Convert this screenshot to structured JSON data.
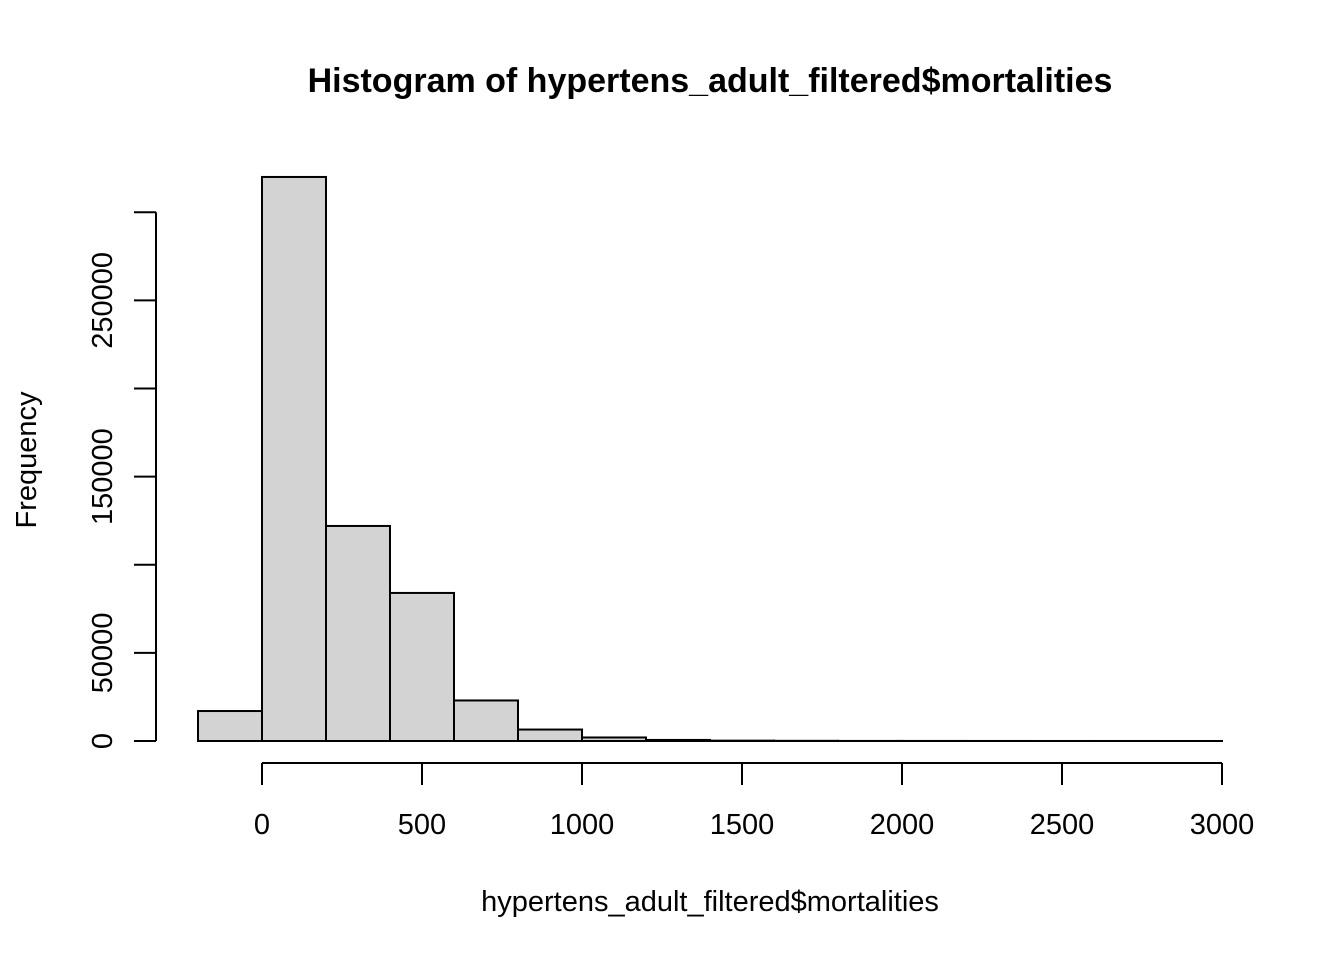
{
  "chart_data": {
    "type": "bar",
    "title": "Histogram of hypertens_adult_filtered$mortalities",
    "xlabel": "hypertens_adult_filtered$mortalities",
    "ylabel": "Frequency",
    "bins": [
      {
        "start": -200,
        "end": 0,
        "count": 17000
      },
      {
        "start": 0,
        "end": 200,
        "count": 320000
      },
      {
        "start": 200,
        "end": 400,
        "count": 122000
      },
      {
        "start": 400,
        "end": 600,
        "count": 84000
      },
      {
        "start": 600,
        "end": 800,
        "count": 23000
      },
      {
        "start": 800,
        "end": 1000,
        "count": 6500
      },
      {
        "start": 1000,
        "end": 1200,
        "count": 2000
      },
      {
        "start": 1200,
        "end": 1400,
        "count": 600
      },
      {
        "start": 1400,
        "end": 1600,
        "count": 200
      },
      {
        "start": 1600,
        "end": 1800,
        "count": 100
      },
      {
        "start": 1800,
        "end": 2000,
        "count": 50
      },
      {
        "start": 2000,
        "end": 2200,
        "count": 30
      },
      {
        "start": 2200,
        "end": 2400,
        "count": 20
      },
      {
        "start": 2400,
        "end": 2600,
        "count": 10
      },
      {
        "start": 2600,
        "end": 2800,
        "count": 10
      },
      {
        "start": 2800,
        "end": 3000,
        "count": 5
      }
    ],
    "x_ticks": [
      0,
      500,
      1000,
      1500,
      2000,
      2500,
      3000
    ],
    "x_tick_labels": [
      "0",
      "500",
      "1000",
      "1500",
      "2000",
      "2500",
      "3000"
    ],
    "y_ticks": [
      0,
      50000,
      100000,
      150000,
      200000,
      250000,
      300000
    ],
    "y_tick_labels": [
      "0",
      "50000",
      "",
      "150000",
      "",
      "250000",
      ""
    ],
    "xlim": [
      -200,
      3000
    ],
    "ylim": [
      0,
      320000
    ],
    "grid": false,
    "colors": {
      "bar_fill": "#d3d3d3",
      "bar_stroke": "#000000"
    }
  }
}
